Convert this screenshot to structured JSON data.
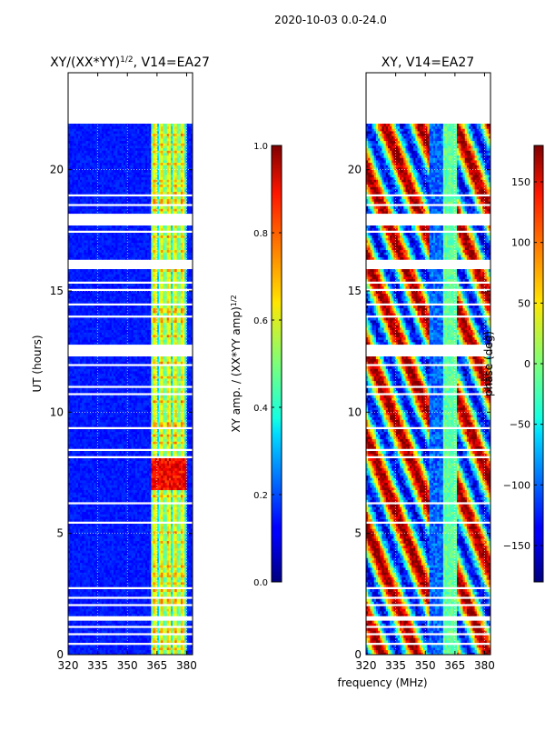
{
  "suptitle": "2020-10-03 0.0-24.0",
  "chart_data": [
    {
      "type": "heatmap",
      "title_main": "XY/(XX*YY)",
      "title_exp": "1/2",
      "title_suffix": ", V14=EA27",
      "xlabel": "",
      "ylabel": "UT (hours)",
      "xlim": [
        320,
        383
      ],
      "ylim": [
        0,
        24
      ],
      "xticks": [
        "320",
        "335",
        "350",
        "365",
        "380"
      ],
      "xtick_values": [
        320,
        335,
        350,
        365,
        380
      ],
      "yticks": [
        "0",
        "5",
        "10",
        "15",
        "20"
      ],
      "ytick_values": [
        0,
        5,
        10,
        15,
        20
      ],
      "colorbar": {
        "label_main": "XY amp. / (XX*YY amp)",
        "label_exp": "1/2",
        "range": [
          0.0,
          1.0
        ],
        "ticks": [
          "0.0",
          "0.2",
          "0.4",
          "0.6",
          "0.8",
          "1.0"
        ],
        "tick_values": [
          0.0,
          0.2,
          0.4,
          0.6,
          0.8,
          1.0
        ]
      }
    },
    {
      "type": "heatmap",
      "title": "XY, V14=EA27",
      "xlabel": "frequency (MHz)",
      "ylabel": "",
      "xlim": [
        320,
        383
      ],
      "ylim": [
        0,
        24
      ],
      "xticks": [
        "320",
        "335",
        "350",
        "365",
        "380"
      ],
      "xtick_values": [
        320,
        335,
        350,
        365,
        380
      ],
      "yticks": [
        "0",
        "5",
        "10",
        "15",
        "20"
      ],
      "ytick_values": [
        0,
        5,
        10,
        15,
        20
      ],
      "colorbar": {
        "label": "phase (deg)",
        "range": [
          -180,
          180
        ],
        "ticks": [
          "−150",
          "−100",
          "−50",
          "0",
          "50",
          "100",
          "150"
        ],
        "tick_values": [
          -150,
          -100,
          -50,
          0,
          50,
          100,
          150
        ]
      }
    }
  ]
}
